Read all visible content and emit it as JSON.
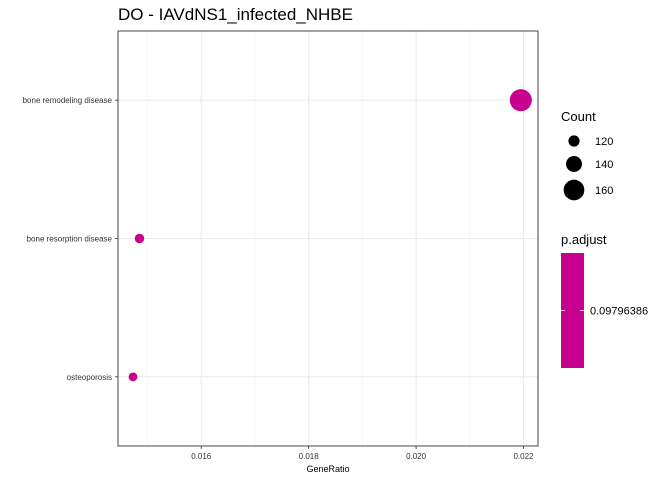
{
  "chart_data": {
    "type": "scatter",
    "title": "DO - IAVdNS1_infected_NHBE",
    "xlabel": "GeneRatio",
    "ylabel": "",
    "xlim": [
      0.01445,
      0.02227
    ],
    "x_ticks": [
      0.016,
      0.018,
      0.02,
      0.022
    ],
    "x_tick_labels": [
      "0.016",
      "0.018",
      "0.020",
      "0.022"
    ],
    "categories": [
      "bone remodeling disease",
      "bone resorption disease",
      "osteoporosis"
    ],
    "points": [
      {
        "term": "bone remodeling disease",
        "gene_ratio": 0.02195,
        "count": 166,
        "p_adjust": 0.09796386
      },
      {
        "term": "bone resorption disease",
        "gene_ratio": 0.01485,
        "count": 113,
        "p_adjust": 0.09796386
      },
      {
        "term": "osteoporosis",
        "gene_ratio": 0.01473,
        "count": 110,
        "p_adjust": 0.09796386
      }
    ],
    "size_legend": {
      "title": "Count",
      "entries": [
        {
          "value": 120,
          "label": "120"
        },
        {
          "value": 140,
          "label": "140"
        },
        {
          "value": 160,
          "label": "160"
        }
      ]
    },
    "color_legend": {
      "title": "p.adjust",
      "labels": [
        "0.09796386"
      ],
      "color": "#C8008F"
    },
    "grid": true,
    "legend_position": "right",
    "point_color": "#C8008F"
  }
}
